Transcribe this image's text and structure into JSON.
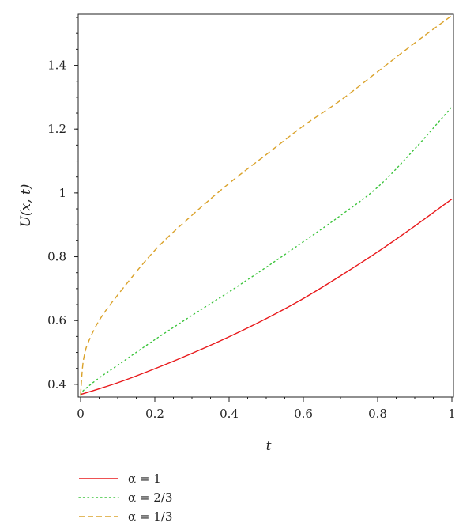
{
  "chart_data": {
    "type": "line",
    "title": "",
    "xlabel": "t",
    "ylabel": "U(x, t)",
    "xlim": [
      0,
      1
    ],
    "ylim": [
      0.36,
      1.56
    ],
    "xticks": [
      0,
      0.2,
      0.4,
      0.6,
      0.8,
      1
    ],
    "xtick_labels": [
      "0",
      "0.2",
      "0.4",
      "0.6",
      "0.8",
      "1"
    ],
    "yticks": [
      0.4,
      0.6,
      0.8,
      1,
      1.2,
      1.4
    ],
    "ytick_labels": [
      "0.4",
      "0.6",
      "0.8",
      "1",
      "1.2",
      "1.4"
    ],
    "grid": false,
    "legend_position": "bottom-left",
    "series": [
      {
        "name": "α = 1",
        "color": "#e8191b",
        "dash": "solid",
        "x": [
          0,
          0.1,
          0.2,
          0.3,
          0.4,
          0.5,
          0.6,
          0.7,
          0.8,
          0.9,
          1
        ],
        "y": [
          0.368,
          0.405,
          0.449,
          0.497,
          0.549,
          0.606,
          0.669,
          0.74,
          0.815,
          0.896,
          0.981
        ]
      },
      {
        "name": "α = 2/3",
        "color": "#3cc43c",
        "dash": "dotted",
        "x": [
          0,
          0.01,
          0.05,
          0.1,
          0.2,
          0.3,
          0.4,
          0.5,
          0.6,
          0.7,
          0.8,
          0.9,
          1
        ],
        "y": [
          0.368,
          0.383,
          0.42,
          0.46,
          0.54,
          0.616,
          0.69,
          0.767,
          0.847,
          0.929,
          1.018,
          1.138,
          1.27
        ]
      },
      {
        "name": "α = 1/3",
        "color": "#daa22a",
        "dash": "dashed",
        "x": [
          0,
          0.005,
          0.01,
          0.02,
          0.05,
          0.1,
          0.2,
          0.3,
          0.4,
          0.5,
          0.6,
          0.7,
          0.8,
          0.9,
          1
        ],
        "y": [
          0.368,
          0.45,
          0.49,
          0.53,
          0.6,
          0.68,
          0.82,
          0.93,
          1.03,
          1.12,
          1.21,
          1.29,
          1.38,
          1.47,
          1.556
        ]
      }
    ]
  }
}
